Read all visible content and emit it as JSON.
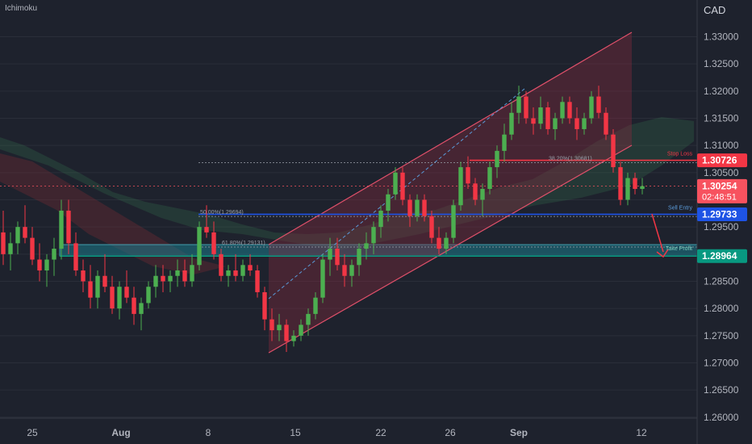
{
  "chart_data": {
    "type": "candlestick",
    "indicator": "Ichimoku",
    "currency": "CAD",
    "y_axis": {
      "range": [
        1.26,
        1.335
      ],
      "ticks": [
        "1.33000",
        "1.32500",
        "1.32000",
        "1.31500",
        "1.31000",
        "1.30500",
        "1.30000",
        "1.29500",
        "1.29000",
        "1.28500",
        "1.28000",
        "1.27500",
        "1.27000",
        "1.26500",
        "1.26000"
      ],
      "tick_values": [
        1.33,
        1.325,
        1.32,
        1.315,
        1.31,
        1.305,
        1.3,
        1.295,
        1.29,
        1.285,
        1.28,
        1.275,
        1.27,
        1.265,
        1.26
      ]
    },
    "x_axis": {
      "ticks": [
        "25",
        "Aug",
        "8",
        "15",
        "22",
        "26",
        "Sep",
        "12"
      ],
      "bold_ticks": [
        "Aug",
        "Sep"
      ]
    },
    "price_levels": [
      {
        "name": "Stop Loss",
        "value": 1.30726,
        "label": "1.30726",
        "color": "#f23645"
      },
      {
        "name": "Current",
        "value": 1.30254,
        "label": "1.30254",
        "countdown": "02:48:51",
        "color": "#f7525f"
      },
      {
        "name": "Sell Entry",
        "value": 1.29733,
        "label": "1.29733",
        "color": "#1e53e5"
      },
      {
        "name": "Take Profit",
        "value": 1.28964,
        "label": "1.28964",
        "color": "#089981"
      }
    ],
    "fibonacci": [
      {
        "label": "38.20%(1.30681)",
        "value": 1.30681
      },
      {
        "label": "50.00%(1.29694)",
        "value": 1.29694
      },
      {
        "label": "61.80%(1.29131)",
        "value": 1.29131
      }
    ],
    "annotations": {
      "stop_loss": "Stop Loss",
      "sell_entry": "Sell Entry",
      "take_profit": "Take Profit"
    },
    "ohlc": [
      [
        1.294,
        1.298,
        1.288,
        1.29
      ],
      [
        1.29,
        1.294,
        1.287,
        1.292
      ],
      [
        1.292,
        1.296,
        1.29,
        1.295
      ],
      [
        1.295,
        1.299,
        1.292,
        1.293
      ],
      [
        1.293,
        1.295,
        1.288,
        1.289
      ],
      [
        1.289,
        1.292,
        1.285,
        1.287
      ],
      [
        1.287,
        1.29,
        1.284,
        1.289
      ],
      [
        1.289,
        1.293,
        1.286,
        1.291
      ],
      [
        1.291,
        1.3,
        1.289,
        1.298
      ],
      [
        1.298,
        1.3,
        1.29,
        1.292
      ],
      [
        1.292,
        1.294,
        1.286,
        1.287
      ],
      [
        1.287,
        1.289,
        1.283,
        1.285
      ],
      [
        1.285,
        1.288,
        1.28,
        1.282
      ],
      [
        1.282,
        1.287,
        1.28,
        1.286
      ],
      [
        1.286,
        1.29,
        1.283,
        1.284
      ],
      [
        1.284,
        1.286,
        1.279,
        1.28
      ],
      [
        1.28,
        1.285,
        1.278,
        1.284
      ],
      [
        1.284,
        1.287,
        1.281,
        1.282
      ],
      [
        1.282,
        1.284,
        1.277,
        1.279
      ],
      [
        1.279,
        1.282,
        1.276,
        1.281
      ],
      [
        1.281,
        1.285,
        1.28,
        1.284
      ],
      [
        1.284,
        1.288,
        1.282,
        1.286
      ],
      [
        1.286,
        1.288,
        1.283,
        1.285
      ],
      [
        1.285,
        1.287,
        1.283,
        1.286
      ],
      [
        1.286,
        1.289,
        1.284,
        1.287
      ],
      [
        1.287,
        1.289,
        1.284,
        1.285
      ],
      [
        1.285,
        1.29,
        1.284,
        1.288
      ],
      [
        1.288,
        1.296,
        1.287,
        1.295
      ],
      [
        1.295,
        1.299,
        1.293,
        1.294
      ],
      [
        1.294,
        1.296,
        1.289,
        1.29
      ],
      [
        1.29,
        1.291,
        1.285,
        1.286
      ],
      [
        1.286,
        1.288,
        1.284,
        1.287
      ],
      [
        1.287,
        1.29,
        1.285,
        1.286
      ],
      [
        1.286,
        1.289,
        1.285,
        1.288
      ],
      [
        1.288,
        1.29,
        1.286,
        1.287
      ],
      [
        1.287,
        1.288,
        1.282,
        1.283
      ],
      [
        1.283,
        1.284,
        1.276,
        1.278
      ],
      [
        1.278,
        1.28,
        1.274,
        1.276
      ],
      [
        1.276,
        1.279,
        1.274,
        1.277
      ],
      [
        1.277,
        1.278,
        1.272,
        1.274
      ],
      [
        1.274,
        1.276,
        1.273,
        1.275
      ],
      [
        1.275,
        1.278,
        1.274,
        1.277
      ],
      [
        1.277,
        1.28,
        1.275,
        1.279
      ],
      [
        1.279,
        1.283,
        1.278,
        1.282
      ],
      [
        1.282,
        1.29,
        1.281,
        1.289
      ],
      [
        1.289,
        1.293,
        1.286,
        1.291
      ],
      [
        1.291,
        1.293,
        1.287,
        1.288
      ],
      [
        1.288,
        1.29,
        1.284,
        1.286
      ],
      [
        1.286,
        1.289,
        1.284,
        1.288
      ],
      [
        1.288,
        1.292,
        1.286,
        1.291
      ],
      [
        1.291,
        1.294,
        1.289,
        1.292
      ],
      [
        1.292,
        1.296,
        1.29,
        1.295
      ],
      [
        1.295,
        1.299,
        1.293,
        1.298
      ],
      [
        1.298,
        1.302,
        1.296,
        1.301
      ],
      [
        1.301,
        1.306,
        1.3,
        1.305
      ],
      [
        1.305,
        1.306,
        1.299,
        1.3
      ],
      [
        1.3,
        1.301,
        1.295,
        1.297
      ],
      [
        1.297,
        1.301,
        1.296,
        1.3
      ],
      [
        1.3,
        1.301,
        1.296,
        1.297
      ],
      [
        1.297,
        1.298,
        1.292,
        1.293
      ],
      [
        1.293,
        1.295,
        1.29,
        1.291
      ],
      [
        1.291,
        1.294,
        1.29,
        1.293
      ],
      [
        1.293,
        1.3,
        1.292,
        1.299
      ],
      [
        1.299,
        1.307,
        1.298,
        1.306
      ],
      [
        1.306,
        1.308,
        1.302,
        1.303
      ],
      [
        1.303,
        1.304,
        1.299,
        1.3
      ],
      [
        1.3,
        1.303,
        1.297,
        1.302
      ],
      [
        1.302,
        1.307,
        1.301,
        1.306
      ],
      [
        1.306,
        1.31,
        1.304,
        1.309
      ],
      [
        1.309,
        1.314,
        1.307,
        1.312
      ],
      [
        1.312,
        1.318,
        1.311,
        1.316
      ],
      [
        1.316,
        1.321,
        1.314,
        1.319
      ],
      [
        1.319,
        1.32,
        1.314,
        1.315
      ],
      [
        1.315,
        1.317,
        1.312,
        1.314
      ],
      [
        1.314,
        1.319,
        1.313,
        1.317
      ],
      [
        1.317,
        1.318,
        1.312,
        1.313
      ],
      [
        1.313,
        1.316,
        1.311,
        1.315
      ],
      [
        1.315,
        1.319,
        1.314,
        1.318
      ],
      [
        1.318,
        1.319,
        1.314,
        1.315
      ],
      [
        1.315,
        1.317,
        1.311,
        1.313
      ],
      [
        1.313,
        1.316,
        1.312,
        1.315
      ],
      [
        1.315,
        1.32,
        1.314,
        1.319
      ],
      [
        1.319,
        1.321,
        1.315,
        1.316
      ],
      [
        1.316,
        1.317,
        1.311,
        1.312
      ],
      [
        1.312,
        1.313,
        1.305,
        1.306
      ],
      [
        1.306,
        1.307,
        1.299,
        1.3
      ],
      [
        1.3,
        1.305,
        1.299,
        1.304
      ],
      [
        1.304,
        1.305,
        1.301,
        1.302
      ],
      [
        1.302,
        1.304,
        1.301,
        1.3025
      ]
    ]
  }
}
